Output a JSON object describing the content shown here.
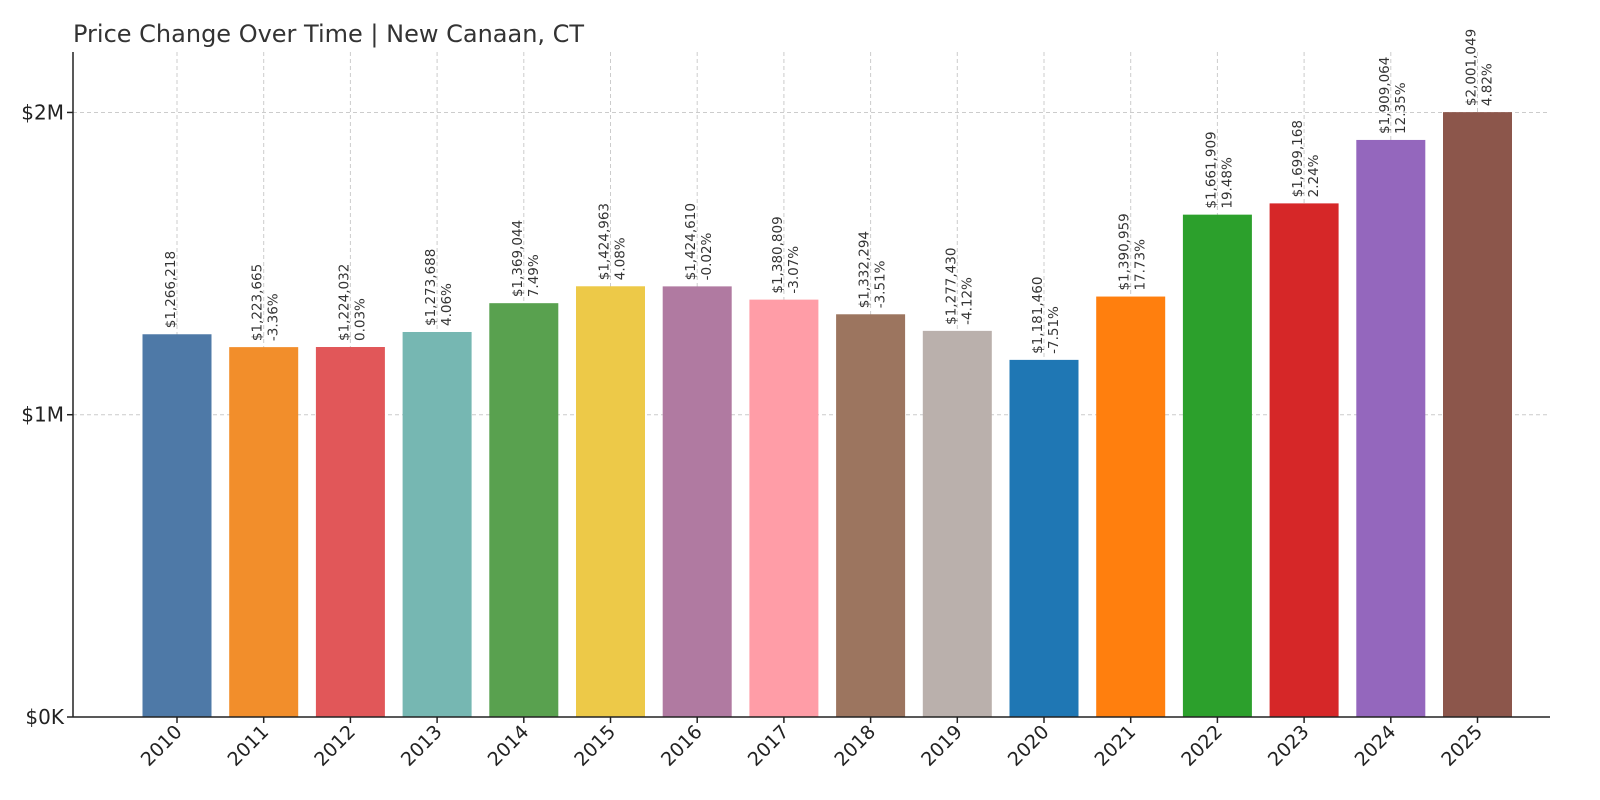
{
  "chart_data": {
    "type": "bar",
    "title": "Price Change Over Time | New Canaan, CT",
    "xlabel": "",
    "ylabel": "",
    "ylim": [
      0,
      2200000
    ],
    "yticks": [
      {
        "value": 0,
        "label": "$0K"
      },
      {
        "value": 1000000,
        "label": "$1M"
      },
      {
        "value": 2000000,
        "label": "$2M"
      }
    ],
    "grid": true,
    "categories": [
      "2010",
      "2011",
      "2012",
      "2013",
      "2014",
      "2015",
      "2016",
      "2017",
      "2018",
      "2019",
      "2020",
      "2021",
      "2022",
      "2023",
      "2024",
      "2025"
    ],
    "values": [
      1266218,
      1223665,
      1224032,
      1273688,
      1369044,
      1424963,
      1424610,
      1380809,
      1332294,
      1277430,
      1181460,
      1390959,
      1661909,
      1699168,
      1909064,
      2001049
    ],
    "value_labels": [
      "$1,266,218",
      "$1,223,665",
      "$1,224,032",
      "$1,273,688",
      "$1,369,044",
      "$1,424,963",
      "$1,424,610",
      "$1,380,809",
      "$1,332,294",
      "$1,277,430",
      "$1,181,460",
      "$1,390,959",
      "$1,661,909",
      "$1,699,168",
      "$1,909,064",
      "$2,001,049"
    ],
    "change_labels": [
      "",
      "-3.36%",
      "0.03%",
      "4.06%",
      "7.49%",
      "4.08%",
      "-0.02%",
      "-3.07%",
      "-3.51%",
      "-4.12%",
      "-7.51%",
      "17.73%",
      "19.48%",
      "2.24%",
      "12.35%",
      "4.82%"
    ],
    "colors": [
      "#4e79a7",
      "#f28e2b",
      "#e15759",
      "#76b7b2",
      "#59a14f",
      "#edc948",
      "#b07aa1",
      "#ff9da7",
      "#9c755f",
      "#bab0ac",
      "#1f77b4",
      "#ff7f0e",
      "#2ca02c",
      "#d62728",
      "#9467bd",
      "#8c564b"
    ]
  }
}
